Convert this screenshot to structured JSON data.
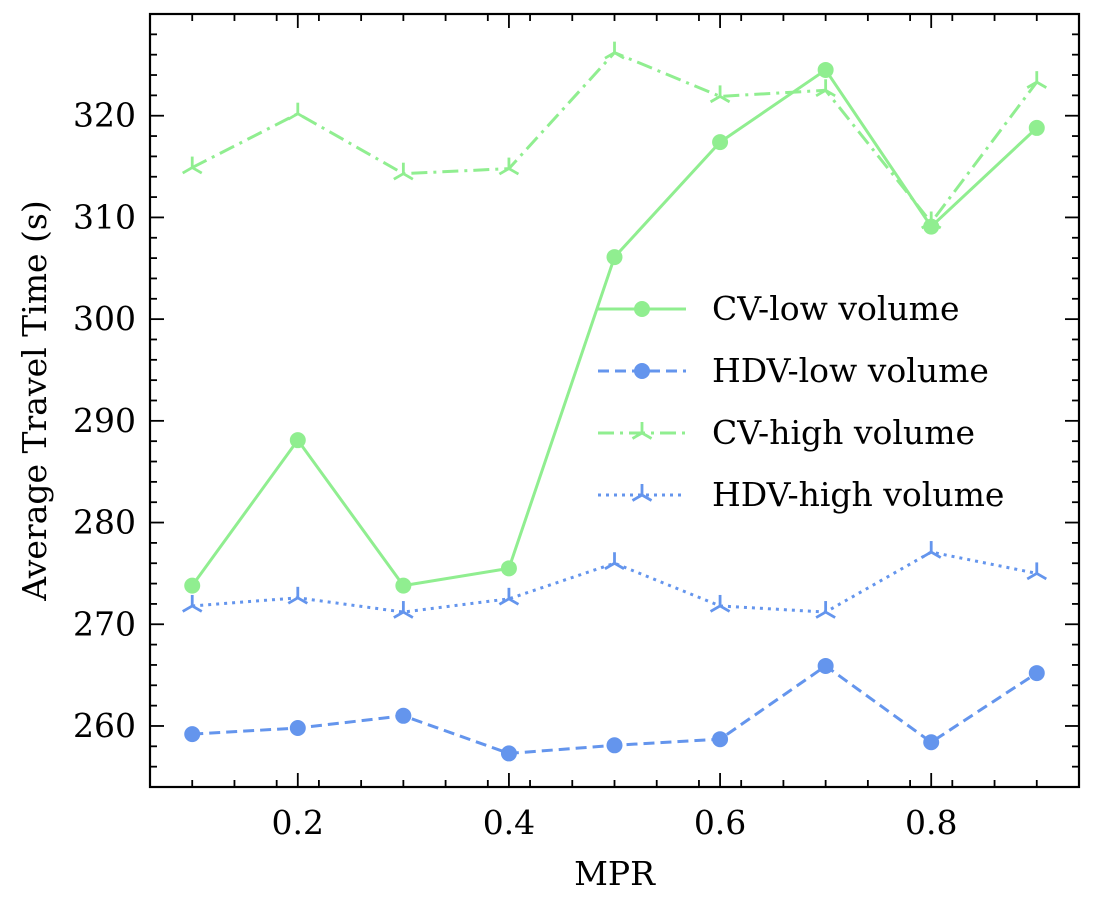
{
  "chart_data": {
    "type": "line",
    "title": "",
    "xlabel": "MPR",
    "ylabel": "Average Travel Time (s)",
    "x": [
      0.1,
      0.2,
      0.3,
      0.4,
      0.5,
      0.6,
      0.7,
      0.8,
      0.9
    ],
    "xlim": [
      0.06,
      0.94
    ],
    "ylim": [
      254,
      330
    ],
    "xticks": [
      0.2,
      0.4,
      0.6,
      0.8
    ],
    "xtick_labels": [
      "0.2",
      "0.4",
      "0.6",
      "0.8"
    ],
    "yticks": [
      260,
      270,
      280,
      290,
      300,
      310,
      320
    ],
    "ytick_labels": [
      "260",
      "270",
      "280",
      "290",
      "300",
      "310",
      "320"
    ],
    "grid": false,
    "legend_position": "center-right",
    "series": [
      {
        "name": "CV-low volume",
        "color": "#90ee90",
        "linestyle": "solid",
        "marker": "circle",
        "values": [
          273.8,
          288.1,
          273.8,
          275.5,
          306.1,
          317.4,
          324.5,
          309.1,
          318.8
        ]
      },
      {
        "name": "HDV-low volume",
        "color": "#6495ed",
        "linestyle": "dashed",
        "marker": "circle",
        "values": [
          259.2,
          259.8,
          261.0,
          257.3,
          258.1,
          258.7,
          265.9,
          258.4,
          265.2
        ]
      },
      {
        "name": "CV-high volume",
        "color": "#90ee90",
        "linestyle": "dashdot",
        "marker": "tri",
        "values": [
          314.9,
          320.2,
          314.3,
          314.8,
          326.2,
          321.9,
          322.5,
          309.5,
          323.3
        ]
      },
      {
        "name": "HDV-high volume",
        "color": "#6495ed",
        "linestyle": "dotted",
        "marker": "tri",
        "values": [
          271.8,
          272.6,
          271.2,
          272.5,
          276.0,
          271.8,
          271.2,
          277.1,
          275.0
        ]
      }
    ]
  }
}
